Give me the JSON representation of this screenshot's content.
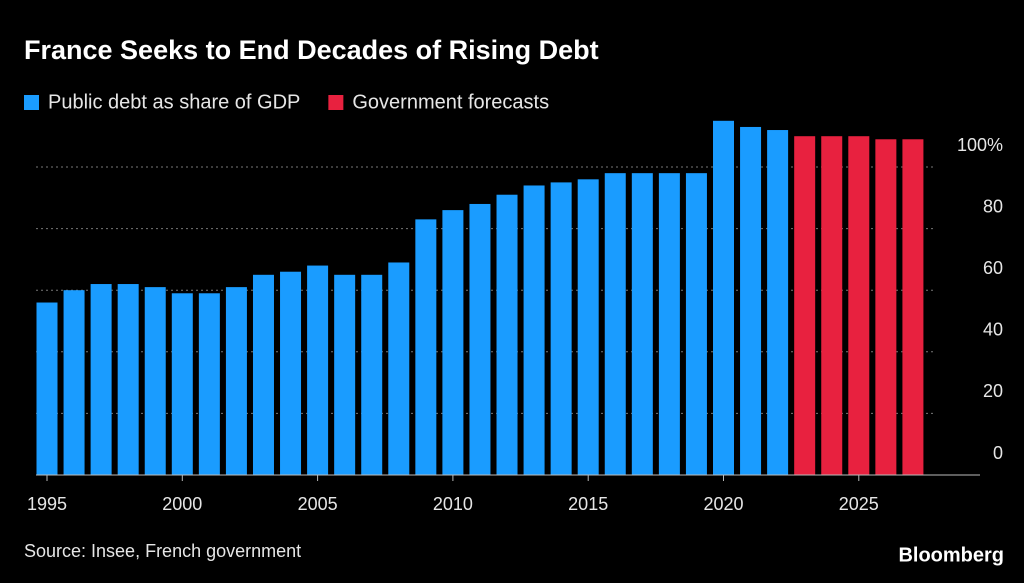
{
  "chart_data": {
    "type": "bar",
    "title": "France Seeks to End Decades of Rising Debt",
    "source": "Source: Insee, French government",
    "logo": "Bloomberg",
    "categories": [
      "1995",
      null,
      null,
      null,
      null,
      "2000",
      null,
      null,
      null,
      null,
      "2005",
      null,
      null,
      null,
      null,
      "2010",
      null,
      null,
      null,
      null,
      "2015",
      null,
      null,
      null,
      null,
      "2020",
      null,
      null,
      null,
      null,
      "2025",
      null,
      null
    ],
    "series": [
      {
        "name": "Public debt as share of GDP",
        "color": "#1a9cff",
        "values": [
          56,
          60,
          62,
          62,
          61,
          59,
          59,
          61,
          65,
          66,
          68,
          65,
          65,
          69,
          83,
          86,
          88,
          91,
          94,
          95,
          96,
          98,
          98,
          98,
          98,
          115,
          113,
          112,
          null,
          null,
          null,
          null,
          null
        ]
      },
      {
        "name": "Government forecasts",
        "color": "#e8213f",
        "values": [
          null,
          null,
          null,
          null,
          null,
          null,
          null,
          null,
          null,
          null,
          null,
          null,
          null,
          null,
          null,
          null,
          null,
          null,
          null,
          null,
          null,
          null,
          null,
          null,
          null,
          null,
          null,
          null,
          110,
          110,
          110,
          109,
          109
        ]
      }
    ],
    "ylim": [
      0,
      120
    ],
    "yticks": [
      0,
      20,
      40,
      60,
      80,
      {
        "value": 100,
        "label": "100%"
      }
    ],
    "grid": true
  }
}
